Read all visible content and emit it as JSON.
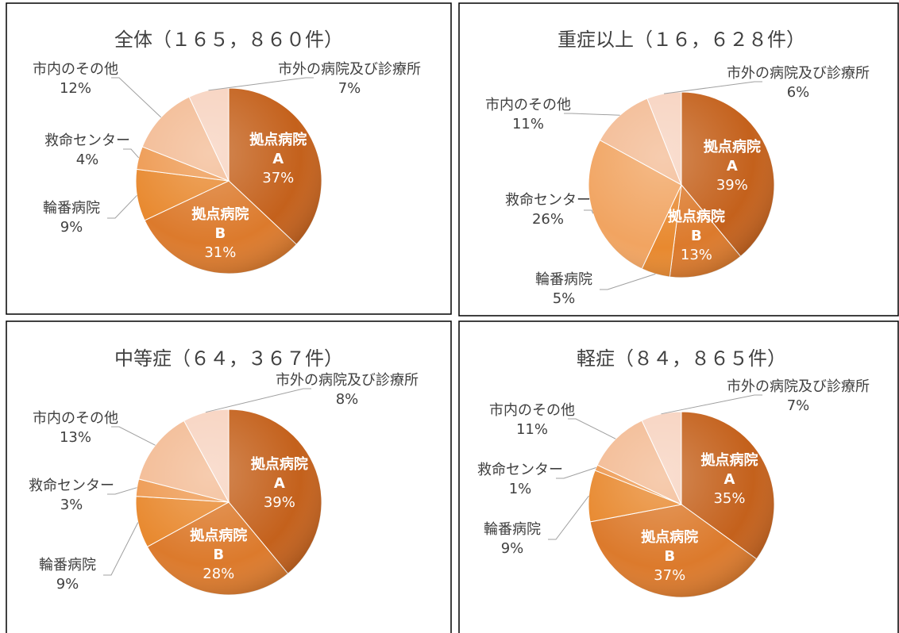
{
  "chart_data": [
    {
      "type": "pie",
      "title": "全体（１６５，８６０件）",
      "categories": [
        "拠点病院A",
        "拠点病院B",
        "輪番病院",
        "救命センター",
        "市内のその他",
        "市外の病院及び診療所"
      ],
      "values": [
        37,
        31,
        9,
        4,
        12,
        7
      ],
      "value_labels": [
        "37%",
        "31%",
        "9%",
        "4%",
        "12%",
        "7%"
      ],
      "colors": [
        "#c4611c",
        "#dc7a2c",
        "#e8892f",
        "#ee9a52",
        "#f3bb94",
        "#f7d3c0"
      ]
    },
    {
      "type": "pie",
      "title": "重症以上（１６，６２８件）",
      "categories": [
        "拠点病院A",
        "拠点病院B",
        "輪番病院",
        "救命センター",
        "市内のその他",
        "市外の病院及び診療所"
      ],
      "values": [
        39,
        13,
        5,
        26,
        11,
        6
      ],
      "value_labels": [
        "39%",
        "13%",
        "5%",
        "26%",
        "11%",
        "6%"
      ],
      "colors": [
        "#c4611c",
        "#dc7a2c",
        "#e8892f",
        "#f1a461",
        "#f3bb94",
        "#f7d3c0"
      ]
    },
    {
      "type": "pie",
      "title": "中等症（６４，３６７件）",
      "categories": [
        "拠点病院A",
        "拠点病院B",
        "輪番病院",
        "救命センター",
        "市内のその他",
        "市外の病院及び診療所"
      ],
      "values": [
        39,
        28,
        9,
        3,
        13,
        8
      ],
      "value_labels": [
        "39%",
        "28%",
        "9%",
        "3%",
        "13%",
        "8%"
      ],
      "colors": [
        "#c4611c",
        "#dc7a2c",
        "#e8892f",
        "#ee9a52",
        "#f3bb94",
        "#f7d3c0"
      ]
    },
    {
      "type": "pie",
      "title": "軽症（８４，８６５件）",
      "categories": [
        "拠点病院A",
        "拠点病院B",
        "輪番病院",
        "救命センター",
        "市内のその他",
        "市外の病院及び診療所"
      ],
      "values": [
        35,
        37,
        9,
        1,
        11,
        7
      ],
      "value_labels": [
        "35%",
        "37%",
        "9%",
        "1%",
        "11%",
        "7%"
      ],
      "colors": [
        "#c4611c",
        "#dc7a2c",
        "#e8892f",
        "#ee9a52",
        "#f3bb94",
        "#f7d3c0"
      ]
    }
  ]
}
